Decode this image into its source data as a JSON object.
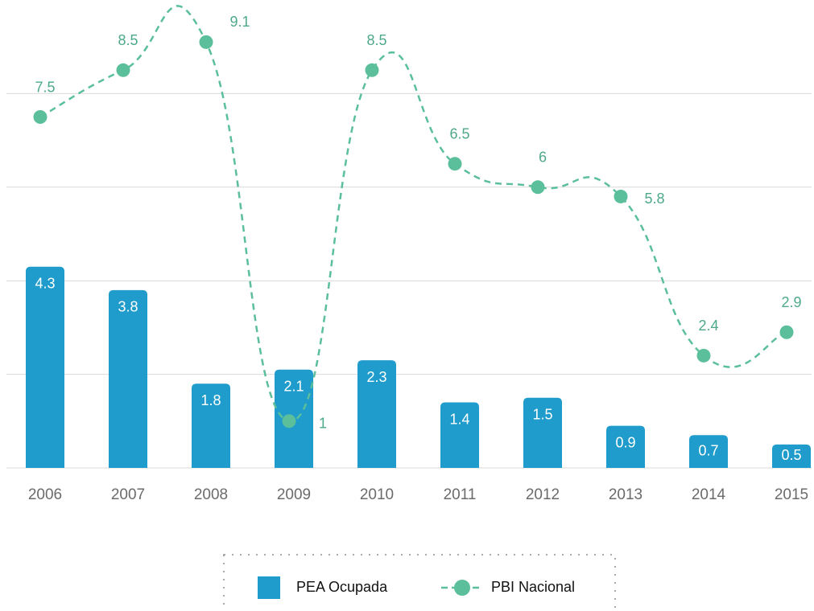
{
  "chart_data": {
    "type": "bar",
    "categories": [
      "2006",
      "2007",
      "2008",
      "2009",
      "2010",
      "2011",
      "2012",
      "2013",
      "2014",
      "2015"
    ],
    "series": [
      {
        "name": "PEA Ocupada",
        "type": "bar",
        "color": "#1f9ccb",
        "values": [
          4.3,
          3.8,
          1.8,
          2.1,
          2.3,
          1.4,
          1.5,
          0.9,
          0.7,
          0.5
        ]
      },
      {
        "name": "PBI Nacional",
        "type": "line",
        "color": "#5bbf9b",
        "values": [
          7.5,
          8.5,
          9.1,
          1.0,
          8.5,
          6.5,
          6.0,
          5.8,
          2.4,
          2.9
        ]
      }
    ],
    "ylim": [
      0,
      10
    ],
    "yticks": [
      0,
      2,
      4,
      6,
      8
    ],
    "grid": true,
    "legend": "bottom"
  }
}
